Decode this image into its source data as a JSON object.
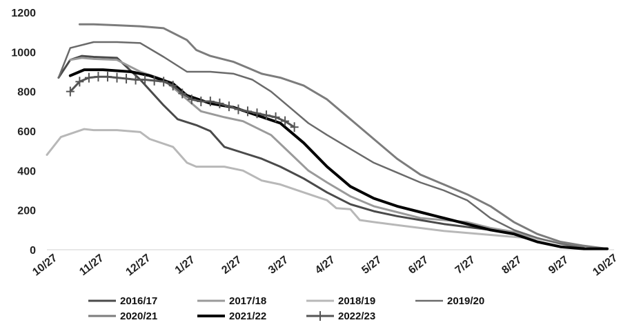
{
  "chart_data": {
    "type": "line",
    "title": "",
    "xlabel": "",
    "ylabel": "",
    "x_ticks": [
      "10/27",
      "11/27",
      "12/27",
      "1/27",
      "2/27",
      "3/27",
      "4/27",
      "5/27",
      "6/27",
      "7/27",
      "8/27",
      "9/27",
      "10/27"
    ],
    "xlim": [
      0,
      12
    ],
    "ylim": [
      0,
      1200
    ],
    "y_ticks": [
      0,
      200,
      400,
      600,
      800,
      1000,
      1200
    ],
    "grid": false,
    "legend_position": "bottom",
    "series": [
      {
        "name": "2016/17",
        "color": "#4a4a4a",
        "width": 3,
        "marker": "none",
        "points": [
          [
            0.25,
            870
          ],
          [
            0.5,
            960
          ],
          [
            0.75,
            980
          ],
          [
            1,
            975
          ],
          [
            1.5,
            970
          ],
          [
            2,
            860
          ],
          [
            2.5,
            730
          ],
          [
            2.8,
            660
          ],
          [
            3.2,
            630
          ],
          [
            3.5,
            600
          ],
          [
            3.8,
            520
          ],
          [
            4.2,
            490
          ],
          [
            4.6,
            460
          ],
          [
            5,
            420
          ],
          [
            5.5,
            360
          ],
          [
            6,
            290
          ],
          [
            6.5,
            230
          ],
          [
            7,
            195
          ],
          [
            7.5,
            170
          ],
          [
            8,
            150
          ],
          [
            8.5,
            130
          ],
          [
            9,
            115
          ],
          [
            9.5,
            100
          ],
          [
            10,
            80
          ],
          [
            10.5,
            40
          ],
          [
            11,
            15
          ],
          [
            11.5,
            5
          ],
          [
            12,
            5
          ]
        ]
      },
      {
        "name": "2017/18",
        "color": "#9a9a9a",
        "width": 3,
        "marker": "none",
        "points": [
          [
            0.5,
            960
          ],
          [
            0.75,
            970
          ],
          [
            1,
            965
          ],
          [
            1.5,
            960
          ],
          [
            2,
            900
          ],
          [
            2.5,
            860
          ],
          [
            3,
            760
          ],
          [
            3.3,
            700
          ],
          [
            3.8,
            670
          ],
          [
            4.2,
            650
          ],
          [
            4.8,
            580
          ],
          [
            5.2,
            490
          ],
          [
            5.6,
            400
          ],
          [
            6,
            340
          ],
          [
            6.5,
            270
          ],
          [
            7,
            220
          ],
          [
            7.5,
            190
          ],
          [
            8,
            160
          ],
          [
            8.5,
            150
          ],
          [
            9,
            140
          ],
          [
            9.5,
            110
          ],
          [
            10,
            90
          ],
          [
            10.5,
            55
          ],
          [
            11,
            35
          ],
          [
            11.5,
            10
          ]
        ]
      },
      {
        "name": "2018/19",
        "color": "#b8b8b8",
        "width": 3,
        "marker": "none",
        "points": [
          [
            0,
            480
          ],
          [
            0.3,
            570
          ],
          [
            0.8,
            610
          ],
          [
            1,
            605
          ],
          [
            1.5,
            605
          ],
          [
            2,
            595
          ],
          [
            2.2,
            560
          ],
          [
            2.7,
            520
          ],
          [
            3,
            440
          ],
          [
            3.2,
            420
          ],
          [
            3.8,
            420
          ],
          [
            4.2,
            400
          ],
          [
            4.6,
            350
          ],
          [
            5,
            330
          ],
          [
            5.5,
            290
          ],
          [
            6,
            250
          ],
          [
            6.2,
            210
          ],
          [
            6.5,
            205
          ],
          [
            6.7,
            150
          ],
          [
            7,
            140
          ],
          [
            7.5,
            125
          ],
          [
            8,
            110
          ],
          [
            8.5,
            95
          ],
          [
            9,
            85
          ],
          [
            9.5,
            75
          ],
          [
            10,
            65
          ],
          [
            10.5,
            55
          ],
          [
            11,
            35
          ],
          [
            11.5,
            20
          ]
        ]
      },
      {
        "name": "2019/20",
        "color": "#6a6a6a",
        "width": 2.5,
        "marker": "none",
        "points": [
          [
            0.25,
            870
          ],
          [
            0.5,
            1020
          ],
          [
            1,
            1050
          ],
          [
            1.5,
            1050
          ],
          [
            2,
            1045
          ],
          [
            2.5,
            975
          ],
          [
            3,
            900
          ],
          [
            3.5,
            900
          ],
          [
            4,
            890
          ],
          [
            4.4,
            860
          ],
          [
            4.8,
            800
          ],
          [
            5.2,
            720
          ],
          [
            5.6,
            640
          ],
          [
            6,
            580
          ],
          [
            6.5,
            510
          ],
          [
            7,
            440
          ],
          [
            7.5,
            390
          ],
          [
            8,
            340
          ],
          [
            8.5,
            300
          ],
          [
            9,
            250
          ],
          [
            9.5,
            160
          ],
          [
            10,
            100
          ],
          [
            10.5,
            60
          ],
          [
            11,
            30
          ],
          [
            11.5,
            10
          ]
        ]
      },
      {
        "name": "2020/21",
        "color": "#7c7c7c",
        "width": 3,
        "marker": "none",
        "points": [
          [
            0.7,
            1140
          ],
          [
            1,
            1140
          ],
          [
            1.5,
            1135
          ],
          [
            2,
            1130
          ],
          [
            2.5,
            1120
          ],
          [
            3,
            1060
          ],
          [
            3.2,
            1010
          ],
          [
            3.5,
            980
          ],
          [
            4,
            950
          ],
          [
            4.3,
            920
          ],
          [
            4.6,
            890
          ],
          [
            5,
            870
          ],
          [
            5.5,
            830
          ],
          [
            6,
            760
          ],
          [
            6.5,
            660
          ],
          [
            7,
            560
          ],
          [
            7.5,
            460
          ],
          [
            8,
            380
          ],
          [
            8.5,
            330
          ],
          [
            9,
            280
          ],
          [
            9.5,
            220
          ],
          [
            10,
            140
          ],
          [
            10.5,
            80
          ],
          [
            11,
            40
          ],
          [
            11.5,
            20
          ],
          [
            12,
            5
          ]
        ]
      },
      {
        "name": "2021/22",
        "color": "#000000",
        "width": 4,
        "marker": "none",
        "points": [
          [
            0.5,
            880
          ],
          [
            0.8,
            910
          ],
          [
            1.2,
            910
          ],
          [
            1.8,
            900
          ],
          [
            2.2,
            880
          ],
          [
            2.7,
            840
          ],
          [
            3,
            780
          ],
          [
            3.5,
            740
          ],
          [
            4,
            720
          ],
          [
            4.5,
            680
          ],
          [
            5,
            640
          ],
          [
            5.5,
            540
          ],
          [
            6,
            420
          ],
          [
            6.5,
            320
          ],
          [
            7,
            260
          ],
          [
            7.5,
            220
          ],
          [
            8,
            190
          ],
          [
            8.5,
            160
          ],
          [
            9,
            130
          ],
          [
            9.5,
            100
          ],
          [
            10,
            80
          ],
          [
            10.5,
            40
          ],
          [
            11,
            15
          ],
          [
            11.5,
            5
          ],
          [
            12,
            5
          ]
        ]
      },
      {
        "name": "2022/23",
        "color": "#555555",
        "width": 3,
        "marker": "plus",
        "points": [
          [
            0.5,
            800
          ],
          [
            0.7,
            850
          ],
          [
            0.9,
            870
          ],
          [
            1.1,
            875
          ],
          [
            1.3,
            875
          ],
          [
            1.5,
            870
          ],
          [
            1.7,
            865
          ],
          [
            1.9,
            860
          ],
          [
            2.1,
            860
          ],
          [
            2.3,
            855
          ],
          [
            2.5,
            850
          ],
          [
            2.7,
            830
          ],
          [
            2.9,
            790
          ],
          [
            3.1,
            760
          ],
          [
            3.3,
            750
          ],
          [
            3.5,
            750
          ],
          [
            3.7,
            740
          ],
          [
            3.9,
            725
          ],
          [
            4.1,
            710
          ],
          [
            4.3,
            700
          ],
          [
            4.5,
            690
          ],
          [
            4.7,
            680
          ],
          [
            4.9,
            670
          ],
          [
            5.1,
            650
          ],
          [
            5.3,
            620
          ]
        ]
      }
    ]
  }
}
